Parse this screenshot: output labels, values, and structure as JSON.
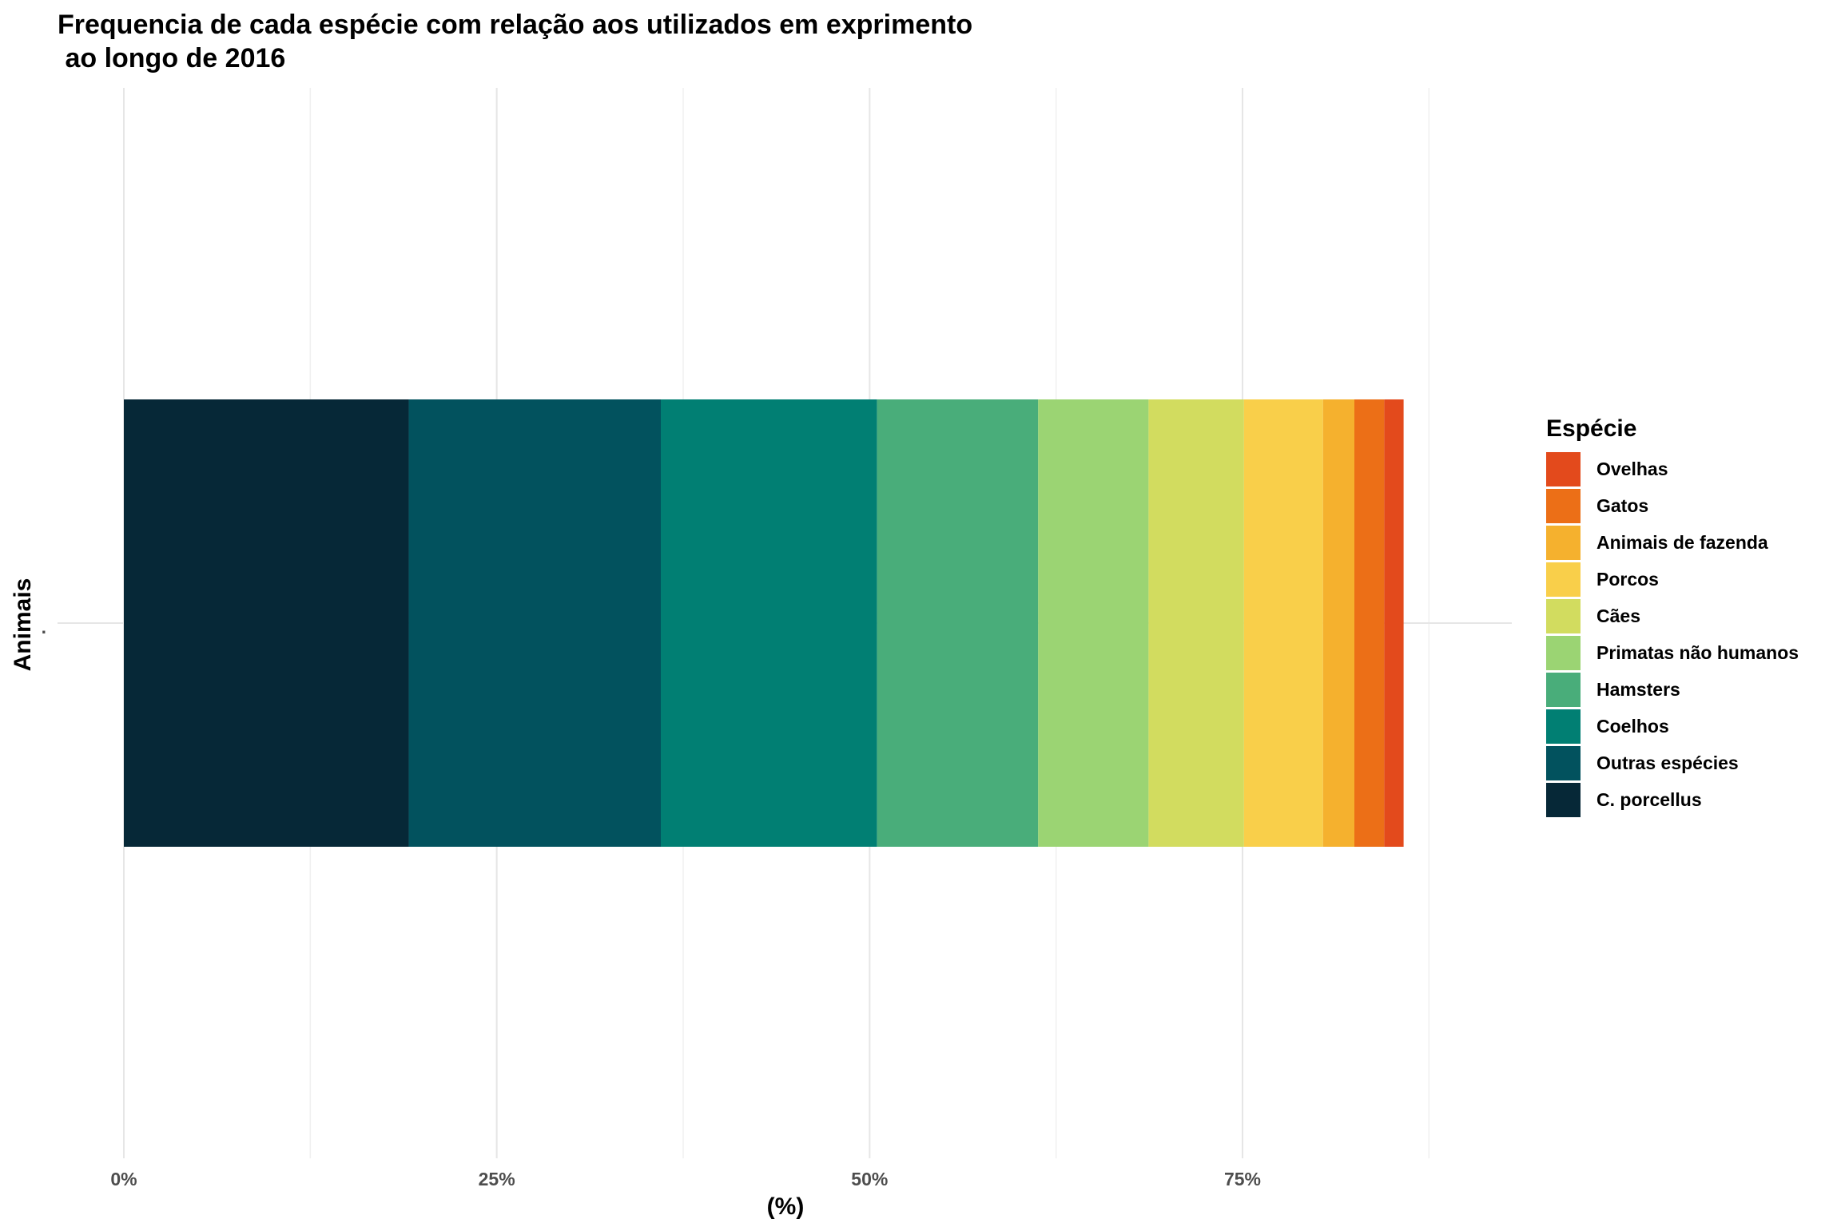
{
  "chart_data": {
    "type": "bar",
    "orientation": "horizontal",
    "stacked": true,
    "title": "Frequencia de cada espécie com relação aos utilizados em exprimento\n ao longo de 2016",
    "xlabel": "(%)",
    "ylabel": "Animais",
    "categories": [
      "."
    ],
    "xlim": [
      0,
      0.9
    ],
    "x_ticks": [
      0,
      0.25,
      0.5,
      0.75
    ],
    "x_tick_labels": [
      "0%",
      "25%",
      "50%",
      "75%"
    ],
    "grid": true,
    "legend_title": "Espécie",
    "legend_position": "right",
    "series": [
      {
        "name": "C. porcellus",
        "values": [
          0.191
        ],
        "color": "#062837"
      },
      {
        "name": "Outras espécies",
        "values": [
          0.169
        ],
        "color": "#02525e"
      },
      {
        "name": "Coelhos",
        "values": [
          0.145
        ],
        "color": "#017f73"
      },
      {
        "name": "Hamsters",
        "values": [
          0.108
        ],
        "color": "#49ad7a"
      },
      {
        "name": "Primatas não humanos",
        "values": [
          0.074
        ],
        "color": "#9bd473"
      },
      {
        "name": "Cães",
        "values": [
          0.064
        ],
        "color": "#d2dc5f"
      },
      {
        "name": "Porcos",
        "values": [
          0.053
        ],
        "color": "#f9cf4a"
      },
      {
        "name": "Animais de fazenda",
        "values": [
          0.021
        ],
        "color": "#f5b12e"
      },
      {
        "name": "Gatos",
        "values": [
          0.02
        ],
        "color": "#ec6f17"
      },
      {
        "name": "Ovelhas",
        "values": [
          0.013
        ],
        "color": "#e34a1c"
      }
    ]
  }
}
